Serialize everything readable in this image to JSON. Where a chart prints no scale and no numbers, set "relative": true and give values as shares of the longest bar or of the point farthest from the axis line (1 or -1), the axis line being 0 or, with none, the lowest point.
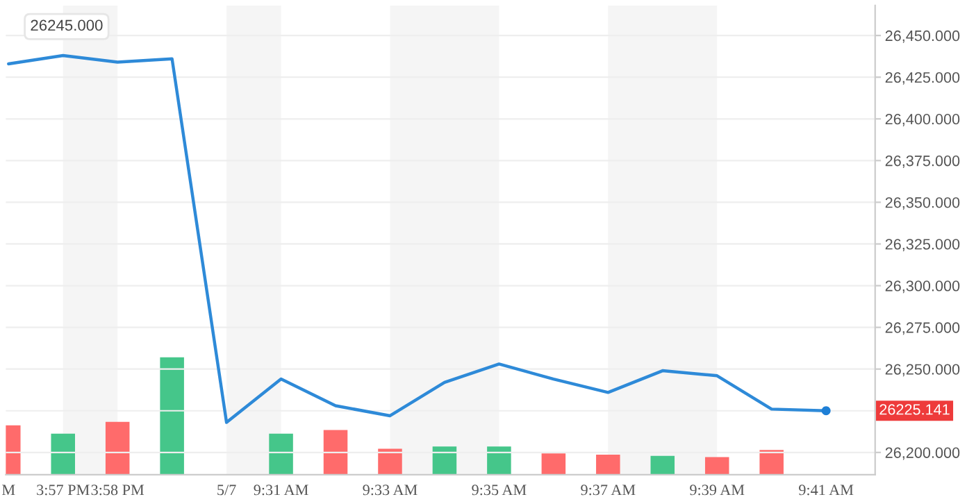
{
  "chart_data": [
    {
      "type": "line",
      "categories": [
        "M",
        "3:57 PM",
        "3:58 PM",
        null,
        "5/7",
        "9:31 AM",
        null,
        "9:33 AM",
        null,
        "9:35 AM",
        null,
        "9:37 AM",
        null,
        "9:39 AM",
        null,
        "9:41 AM"
      ],
      "series": [
        {
          "color": "#2e8ad8",
          "values": [
            26433,
            26438,
            26434,
            26436,
            26218,
            26244,
            26228,
            26222,
            26242,
            26253,
            26244,
            26236,
            26249,
            26246,
            26226,
            26225
          ]
        },
        {
          "type": "scatter",
          "color": "#1e7fd6",
          "values": [
            null,
            null,
            null,
            null,
            null,
            null,
            null,
            null,
            null,
            null,
            null,
            null,
            null,
            null,
            null,
            26225
          ]
        }
      ],
      "ylim": [
        26186.7,
        26468
      ],
      "yticks": [
        {
          "value": 26200,
          "label": "26,200.000"
        },
        {
          "value": 26225,
          "label": null
        },
        {
          "value": 26250,
          "label": "26,250.000"
        },
        {
          "value": 26275,
          "label": "26,275.000"
        },
        {
          "value": 26300,
          "label": "26,300.000"
        },
        {
          "value": 26325,
          "label": "26,325.000"
        },
        {
          "value": 26350,
          "label": "26,350.000"
        },
        {
          "value": 26375,
          "label": "26,375.000"
        },
        {
          "value": 26400,
          "label": "26,400.000"
        },
        {
          "value": 26425,
          "label": "26,425.000"
        },
        {
          "value": 26450,
          "label": "26,450.000"
        }
      ],
      "bands": [
        {
          "axis": "x",
          "from": "3:57 PM",
          "to": "3:58 PM",
          "color": "#f5f5f5"
        },
        {
          "axis": "x",
          "from": "5/7",
          "to": "9:31 AM",
          "color": "#f5f5f5"
        },
        {
          "axis": "x",
          "from": "9:33 AM",
          "to": "9:35 AM",
          "color": "#f5f5f5"
        },
        {
          "axis": "x",
          "from": "9:37 AM",
          "to": "9:39 AM",
          "color": "#f5f5f5"
        }
      ],
      "annotations": [
        "26245.000",
        "26225.141"
      ],
      "grid": "y"
    },
    {
      "type": "bar",
      "relative": true,
      "tick_labels": false,
      "categories": [
        null,
        null,
        null,
        null,
        null,
        null,
        null,
        null,
        null,
        null,
        null,
        null,
        null,
        null,
        null,
        null
      ],
      "colors": [
        "#ff6b6b",
        "#45c68a",
        "#ff6b6b",
        "#45c68a",
        null,
        "#45c68a",
        "#ff6b6b",
        "#ff6b6b",
        "#45c68a",
        "#45c68a",
        "#ff6b6b",
        "#ff6b6b",
        "#45c68a",
        "#ff6b6b",
        "#ff6b6b",
        null
      ],
      "values": [
        0.42,
        0.35,
        0.45,
        1,
        null,
        0.35,
        0.38,
        0.22,
        0.24,
        0.24,
        0.18,
        0.17,
        0.16,
        0.15,
        0.21,
        null
      ]
    }
  ]
}
